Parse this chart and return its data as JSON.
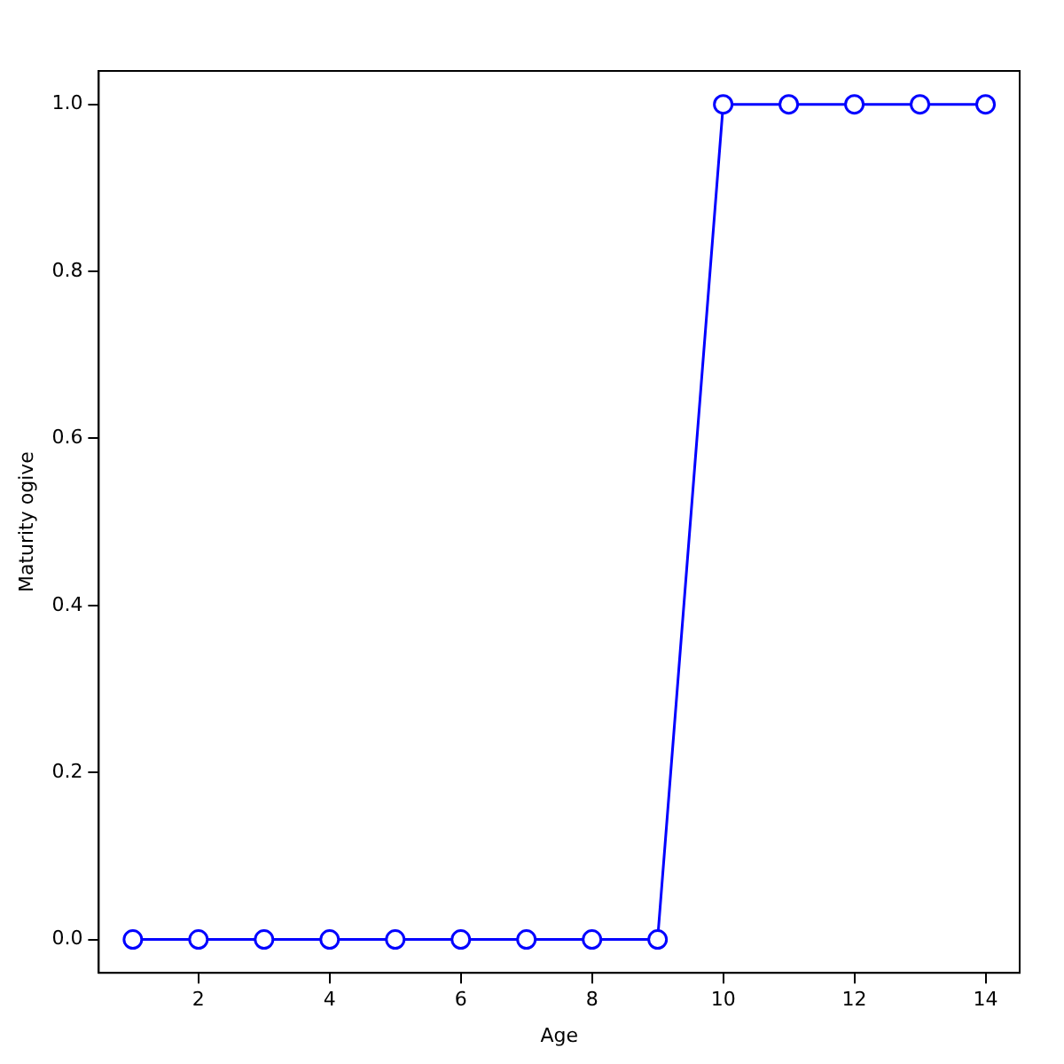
{
  "chart_data": {
    "type": "line",
    "xlabel": "Age",
    "ylabel": "Maturity ogive",
    "x": [
      1,
      2,
      3,
      4,
      5,
      6,
      7,
      8,
      9,
      10,
      11,
      12,
      13,
      14
    ],
    "series": [
      {
        "color": "#0000ff",
        "values": [
          0,
          0,
          0,
          0,
          0,
          0,
          0,
          0,
          0,
          1,
          1,
          1,
          1,
          1
        ]
      }
    ],
    "xlim": [
      0.48,
      14.52
    ],
    "ylim": [
      -0.04,
      1.04
    ],
    "xticks": [
      2,
      4,
      6,
      8,
      10,
      12,
      14
    ],
    "yticks": [
      {
        "value": 0,
        "label": "0.0"
      },
      {
        "value": 0.2,
        "label": "0.2"
      },
      {
        "value": 0.4,
        "label": "0.4"
      },
      {
        "value": 0.6,
        "label": "0.6"
      },
      {
        "value": 0.8,
        "label": "0.8"
      },
      {
        "value": 1,
        "label": "1.0"
      }
    ],
    "grid": false,
    "legend": false,
    "marker": "circle",
    "line_style": "solid"
  }
}
